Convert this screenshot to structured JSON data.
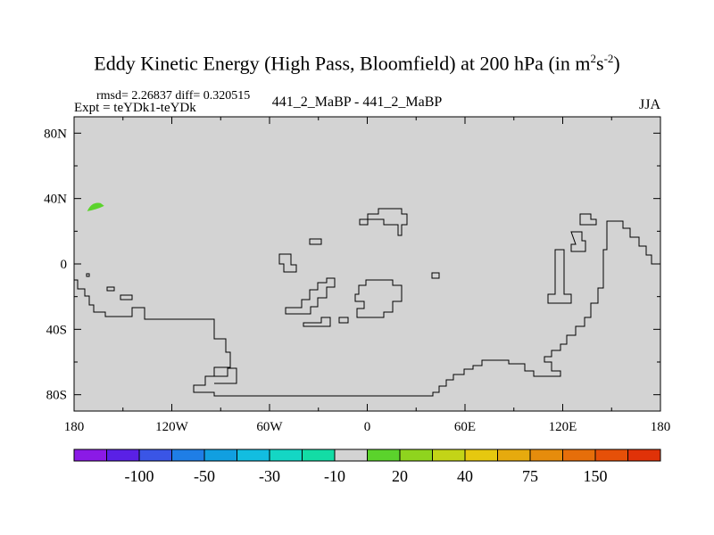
{
  "chart_data": {
    "type": "map",
    "title": "Eddy Kinetic Energy (High Pass, Bloomfield) at 200 hPa (in m",
    "title_units": {
      "sup1": "2",
      "mid": "s",
      "sup2": "-2",
      "close": ")"
    },
    "stats": "rmsd= 2.26837  diff= 0.320515",
    "left_label": "Expt = teYDk1-teYDk",
    "center_label": "441_2_MaBP - 441_2_MaBP",
    "right_label": "JJA",
    "lon_range": [
      -180,
      180
    ],
    "lat_range": [
      -90,
      90
    ],
    "x_ticks": [
      {
        "value": -180,
        "label": "180"
      },
      {
        "value": -120,
        "label": "120W"
      },
      {
        "value": -60,
        "label": "60W"
      },
      {
        "value": 0,
        "label": "0"
      },
      {
        "value": 60,
        "label": "60E"
      },
      {
        "value": 120,
        "label": "120E"
      },
      {
        "value": 180,
        "label": "180"
      }
    ],
    "y_ticks": [
      {
        "value": 80,
        "label": "80N"
      },
      {
        "value": 40,
        "label": "40N"
      },
      {
        "value": 0,
        "label": "0"
      },
      {
        "value": -40,
        "label": "40S"
      },
      {
        "value": -80,
        "label": "80S"
      }
    ],
    "background_color": "#d3d3d3",
    "colorbar": {
      "colors": [
        "#8b1ae6",
        "#5a20e6",
        "#3a55e6",
        "#1f7ee6",
        "#119fe0",
        "#12bde0",
        "#14d6c4",
        "#13dca5",
        "#d3d3d3",
        "#5bd32c",
        "#8fd41e",
        "#c3d417",
        "#e6c80f",
        "#e6aa0e",
        "#e68c0c",
        "#e66e0a",
        "#e65008",
        "#e03208"
      ],
      "labels": [
        {
          "after_index": 1,
          "text": "-100"
        },
        {
          "after_index": 3,
          "text": "-50"
        },
        {
          "after_index": 5,
          "text": "-30"
        },
        {
          "after_index": 7,
          "text": "-10"
        },
        {
          "after_index": 9,
          "text": "20"
        },
        {
          "after_index": 11,
          "text": "40"
        },
        {
          "after_index": 13,
          "text": "75"
        },
        {
          "after_index": 15,
          "text": "150"
        }
      ]
    },
    "anomaly_patches": [
      {
        "color": "#5bd32c",
        "lon": -167,
        "lat": 35,
        "value_bin": "10 to 20"
      }
    ]
  }
}
